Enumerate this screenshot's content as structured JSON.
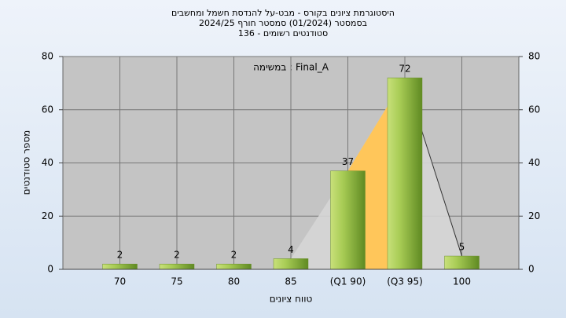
{
  "chart_data": {
    "type": "bar",
    "title": [
      "היסטוגרמת ציונים בקורס - מבט-על להנדסת חשמל ומחשבים",
      "בסמסטר  (01/2024)  סמסטר חורף 2024/25",
      "סטודנטים רשומים - 136"
    ],
    "annotation": "במשימה : Final_A",
    "x_label": "טווח ציונים",
    "y_label": "מספר סטודנטים",
    "categories": [
      "70",
      "75",
      "80",
      "85",
      "(Q1 90)",
      "(Q3 95)",
      "100"
    ],
    "values": [
      2,
      2,
      2,
      4,
      37,
      72,
      5
    ],
    "color": "#8fb83a",
    "ylim": [
      0,
      80
    ],
    "yticks": [
      0,
      20,
      40,
      60,
      80
    ],
    "y2lim": [
      0,
      80
    ],
    "y2ticks": [
      0,
      20,
      40,
      60,
      80
    ],
    "grid": true
  }
}
